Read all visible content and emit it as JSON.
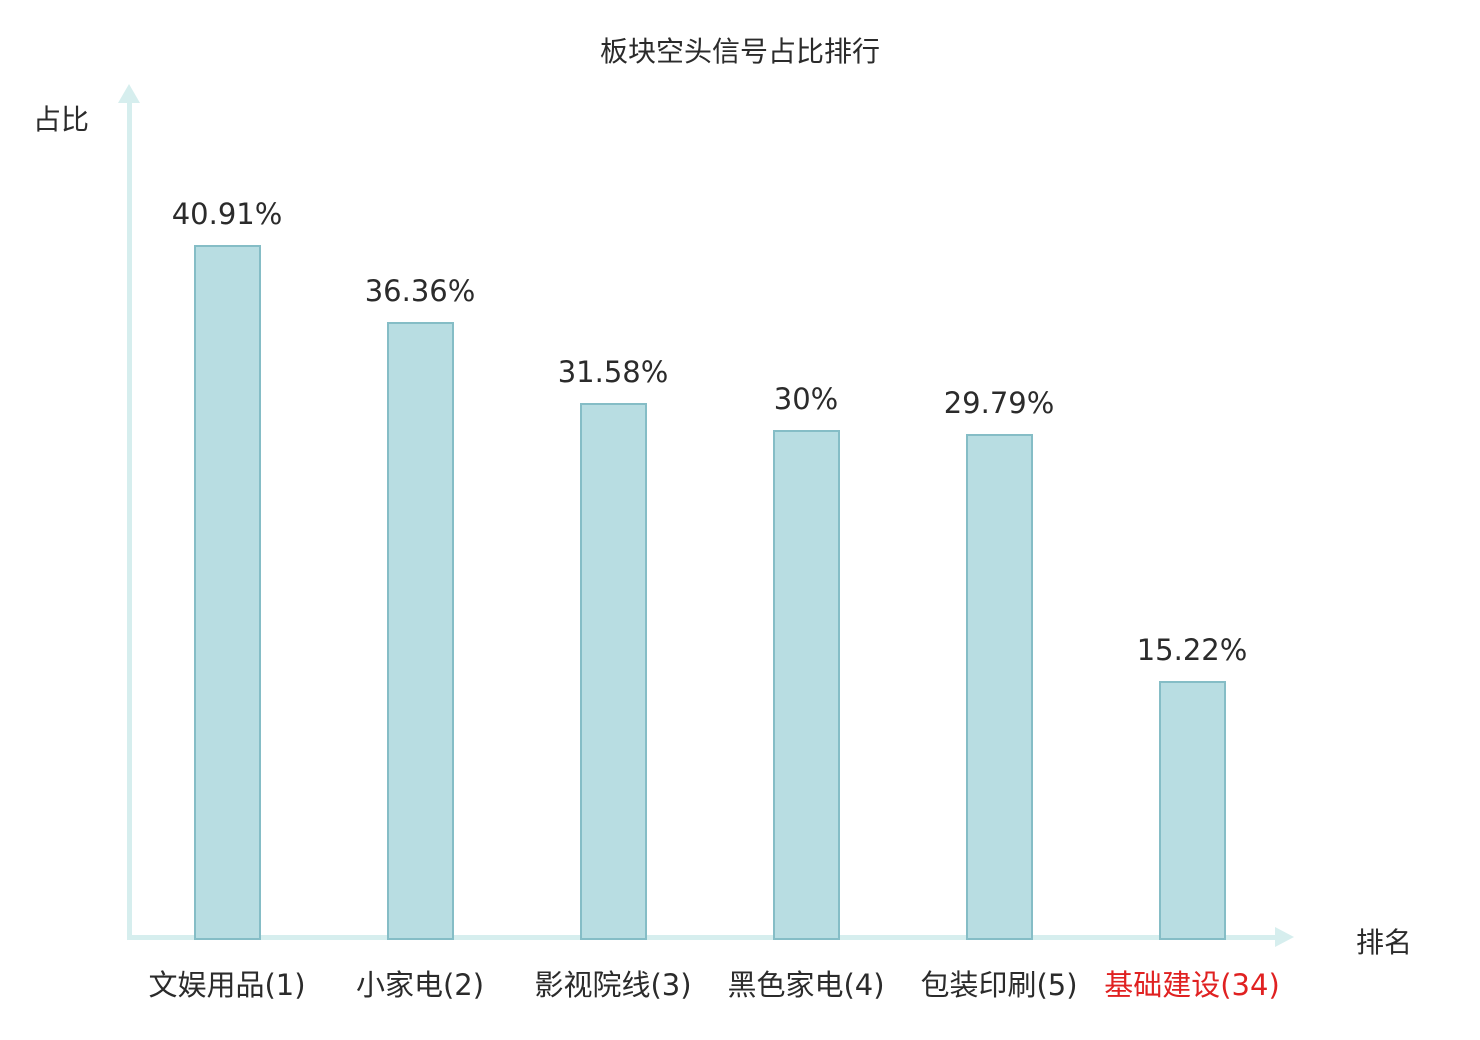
{
  "chart_data": {
    "type": "bar",
    "title": "板块空头信号占比排行",
    "xlabel": "排名",
    "ylabel": "占比",
    "categories": [
      "文娱用品(1)",
      "小家电(2)",
      "影视院线(3)",
      "黑色家电(4)",
      "包装印刷(5)",
      "基础建设(34)"
    ],
    "values": [
      40.91,
      36.36,
      31.58,
      30,
      29.79,
      15.22
    ],
    "value_labels": [
      "40.91%",
      "36.36%",
      "31.58%",
      "30%",
      "29.79%",
      "15.22%"
    ],
    "highlight_index": 5,
    "highlight_color": "#e02121",
    "bar_fill": "#b8dde2",
    "bar_border": "#85bdc6",
    "axis_color": "#d6eeee",
    "text_color": "#2b2b2b",
    "ylim": [
      0,
      50
    ],
    "grid": false,
    "legend_position": "none"
  }
}
